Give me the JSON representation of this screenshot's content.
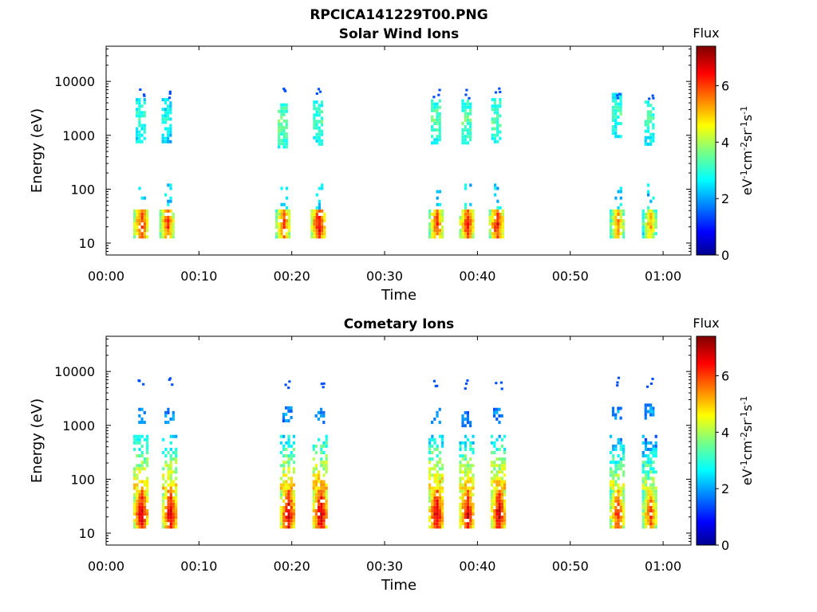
{
  "figure": {
    "filename_title": "RPCICA141229T00.PNG"
  },
  "chart_data": [
    {
      "type": "heatmap",
      "title": "Solar Wind Ions",
      "xlabel": "Time",
      "ylabel": "Energy (eV)",
      "x_ticks": [
        "00:00",
        "00:10",
        "00:20",
        "00:30",
        "00:40",
        "00:50",
        "01:00"
      ],
      "x_range_minutes": [
        0,
        63
      ],
      "y_scale": "log",
      "y_ticks": [
        10,
        100,
        1000,
        10000
      ],
      "y_tick_labels": [
        "10",
        "100",
        "1000",
        "10000"
      ],
      "y_range": [
        6,
        45000
      ],
      "colorbar": {
        "label": "Flux",
        "unit": "eV⁻¹cm⁻²sr⁻¹s⁻¹",
        "range": [
          0,
          7.4
        ],
        "ticks": [
          0,
          2,
          4,
          6
        ],
        "colormap": "jet"
      },
      "bursts_minutes": [
        {
          "t": 3.7,
          "low_flux": 6.5,
          "high_flux": 3.2,
          "high_center_eV": 2000
        },
        {
          "t": 6.5,
          "low_flux": 6.3,
          "high_flux": 3.0,
          "high_center_eV": 2000
        },
        {
          "t": 19.0,
          "low_flux": 6.2,
          "high_flux": 3.6,
          "high_center_eV": 1600
        },
        {
          "t": 22.8,
          "low_flux": 6.8,
          "high_flux": 3.4,
          "high_center_eV": 1800
        },
        {
          "t": 35.5,
          "low_flux": 6.3,
          "high_flux": 3.5,
          "high_center_eV": 1900
        },
        {
          "t": 38.8,
          "low_flux": 6.5,
          "high_flux": 3.5,
          "high_center_eV": 1900
        },
        {
          "t": 42.0,
          "low_flux": 6.6,
          "high_flux": 3.5,
          "high_center_eV": 2000
        },
        {
          "t": 55.0,
          "low_flux": 5.8,
          "high_flux": 3.2,
          "high_center_eV": 2500
        },
        {
          "t": 58.5,
          "low_flux": 5.5,
          "high_flux": 3.3,
          "high_center_eV": 1800
        }
      ]
    },
    {
      "type": "heatmap",
      "title": "Cometary Ions",
      "xlabel": "Time",
      "ylabel": "Energy (eV)",
      "x_ticks": [
        "00:00",
        "00:10",
        "00:20",
        "00:30",
        "00:40",
        "00:50",
        "01:00"
      ],
      "x_range_minutes": [
        0,
        63
      ],
      "y_scale": "log",
      "y_ticks": [
        10,
        100,
        1000,
        10000
      ],
      "y_tick_labels": [
        "10",
        "100",
        "1000",
        "10000"
      ],
      "y_range": [
        6,
        45000
      ],
      "colorbar": {
        "label": "Flux",
        "unit": "eV⁻¹cm⁻²sr⁻¹s⁻¹",
        "range": [
          0,
          7.4
        ],
        "ticks": [
          0,
          2,
          4,
          6
        ],
        "colormap": "jet"
      },
      "bursts_minutes": [
        {
          "t": 3.7,
          "low_flux": 7.0,
          "high_flux": 2.0,
          "high_center_eV": 1500
        },
        {
          "t": 6.8,
          "low_flux": 7.0,
          "high_flux": 2.0,
          "high_center_eV": 1500
        },
        {
          "t": 19.5,
          "low_flux": 7.1,
          "high_flux": 2.0,
          "high_center_eV": 1600
        },
        {
          "t": 23.0,
          "low_flux": 7.2,
          "high_flux": 2.0,
          "high_center_eV": 1500
        },
        {
          "t": 35.5,
          "low_flux": 7.1,
          "high_flux": 2.0,
          "high_center_eV": 1500
        },
        {
          "t": 38.8,
          "low_flux": 7.0,
          "high_flux": 2.0,
          "high_center_eV": 1300
        },
        {
          "t": 42.2,
          "low_flux": 7.1,
          "high_flux": 2.0,
          "high_center_eV": 1500
        },
        {
          "t": 55.0,
          "low_flux": 6.5,
          "high_flux": 2.0,
          "high_center_eV": 1800
        },
        {
          "t": 58.5,
          "low_flux": 6.3,
          "high_flux": 2.0,
          "high_center_eV": 1800
        }
      ]
    }
  ]
}
